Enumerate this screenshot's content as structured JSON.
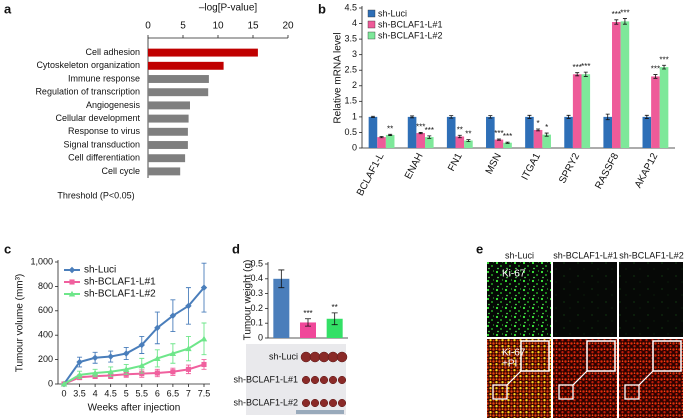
{
  "chart_data": [
    {
      "panel": "a",
      "type": "bar",
      "orientation": "horizontal",
      "xlabel": "–log[P-value]",
      "categories": [
        "Cell adhesion",
        "Cytoskeleton organization",
        "Immune response",
        "Regulation of transcription",
        "Angiogenesis",
        "Cellular development",
        "Response to virus",
        "Signal transduction",
        "Cell differentiation",
        "Cell cycle"
      ],
      "values": [
        15.7,
        10.8,
        8.7,
        8.6,
        6,
        5.8,
        5.7,
        5.7,
        5.3,
        4.6
      ],
      "colors": [
        "#c00000",
        "#c00000",
        "#7f7f7f",
        "#7f7f7f",
        "#7f7f7f",
        "#7f7f7f",
        "#7f7f7f",
        "#7f7f7f",
        "#7f7f7f",
        "#7f7f7f"
      ],
      "xlim": [
        0,
        20
      ],
      "xticks": [
        0,
        5,
        10,
        15,
        20
      ],
      "annotation": "Threshold (P<0.05)"
    },
    {
      "panel": "b",
      "type": "bar",
      "ylabel": "Relative mRNA level",
      "categories": [
        "BCLAF1-L",
        "ENAH",
        "FN1",
        "MSN",
        "ITGA1",
        "SPRY2",
        "RASSF8",
        "AKAP12"
      ],
      "series": [
        {
          "name": "sh-Luci",
          "color": "#2e6fb7",
          "values": [
            1,
            1,
            1,
            1,
            1,
            1,
            1,
            1
          ],
          "errors": [
            0.02,
            0.03,
            0.04,
            0.04,
            0.05,
            0.05,
            0.09,
            0.05
          ],
          "significance": [
            null,
            null,
            null,
            null,
            null,
            null,
            null,
            null
          ]
        },
        {
          "name": "sh-BCLAF1-L#1",
          "color": "#ee5b99",
          "values": [
            0.35,
            0.48,
            0.37,
            0.27,
            0.58,
            2.37,
            4.05,
            2.3
          ],
          "errors": [
            0.02,
            0.02,
            0.04,
            0.02,
            0.03,
            0.05,
            0.07,
            0.06
          ],
          "significance": [
            null,
            "***",
            "**",
            "***",
            "*",
            "***",
            "***",
            "***"
          ]
        },
        {
          "name": "sh-BCLAF1-L#2",
          "color": "#7ee89a",
          "values": [
            0.42,
            0.35,
            0.24,
            0.17,
            0.43,
            2.37,
            4.07,
            2.6
          ],
          "errors": [
            0.02,
            0.04,
            0.03,
            0.02,
            0.05,
            0.07,
            0.09,
            0.06
          ],
          "significance": [
            "**",
            "***",
            "**",
            "***",
            "*",
            "***",
            "***",
            "***"
          ]
        }
      ],
      "ylim": [
        0,
        4.5
      ],
      "yticks": [
        0,
        0.5,
        1,
        1.5,
        2,
        2.5,
        3,
        3.5,
        4,
        4.5
      ]
    },
    {
      "panel": "c",
      "type": "line",
      "xlabel": "Weeks after injection",
      "ylabel": "Tumour volume (mm³)",
      "categories": [
        "0",
        "3.5",
        "4",
        "4.5",
        "5",
        "5.5",
        "6",
        "6.5",
        "7",
        "7.5"
      ],
      "series": [
        {
          "name": "sh-Luci",
          "color": "#4a7ebb",
          "marker": "diamond",
          "values": [
            0,
            180,
            215,
            225,
            250,
            320,
            460,
            560,
            640,
            790
          ],
          "errors": [
            0,
            40,
            45,
            45,
            50,
            70,
            130,
            130,
            150,
            200
          ]
        },
        {
          "name": "sh-BCLAF1-L#1",
          "color": "#f0609e",
          "marker": "square",
          "values": [
            0,
            55,
            65,
            70,
            80,
            85,
            90,
            100,
            120,
            160
          ],
          "errors": [
            0,
            20,
            20,
            25,
            25,
            30,
            30,
            30,
            35,
            40
          ]
        },
        {
          "name": "sh-BCLAF1-L#2",
          "color": "#6ee68a",
          "marker": "triangle",
          "values": [
            0,
            75,
            90,
            100,
            120,
            150,
            210,
            250,
            290,
            370
          ],
          "errors": [
            0,
            30,
            30,
            40,
            40,
            60,
            70,
            80,
            100,
            130
          ]
        }
      ],
      "ylim": [
        0,
        1000
      ],
      "yticks": [
        0,
        200,
        400,
        600,
        800,
        {
          "value": 1000,
          "label": "1,000"
        }
      ]
    },
    {
      "panel": "d",
      "type": "bar",
      "ylabel": "Tumour weight (g)",
      "categories": [
        "sh-Luci",
        "sh-BCLAF1-L#1",
        "sh-BCLAF1-L#2"
      ],
      "values": [
        0.4,
        0.105,
        0.13
      ],
      "errors": [
        0.06,
        0.025,
        0.04
      ],
      "significance": [
        null,
        "***",
        "**"
      ],
      "colors": [
        "#4a7ebb",
        "#f0489a",
        "#33e066"
      ],
      "ylim": [
        0,
        0.5
      ],
      "yticks": [
        0,
        0.1,
        0.2,
        0.3,
        0.4,
        0.5
      ]
    }
  ],
  "figure_e": {
    "panel": "e",
    "columns": [
      "sh-Luci",
      "sh-BCLAF1-L#1",
      "sh-BCLAF1-L#2"
    ],
    "rows": [
      [
        "Ki-67"
      ],
      [
        "Ki-67",
        "+PI"
      ]
    ]
  }
}
